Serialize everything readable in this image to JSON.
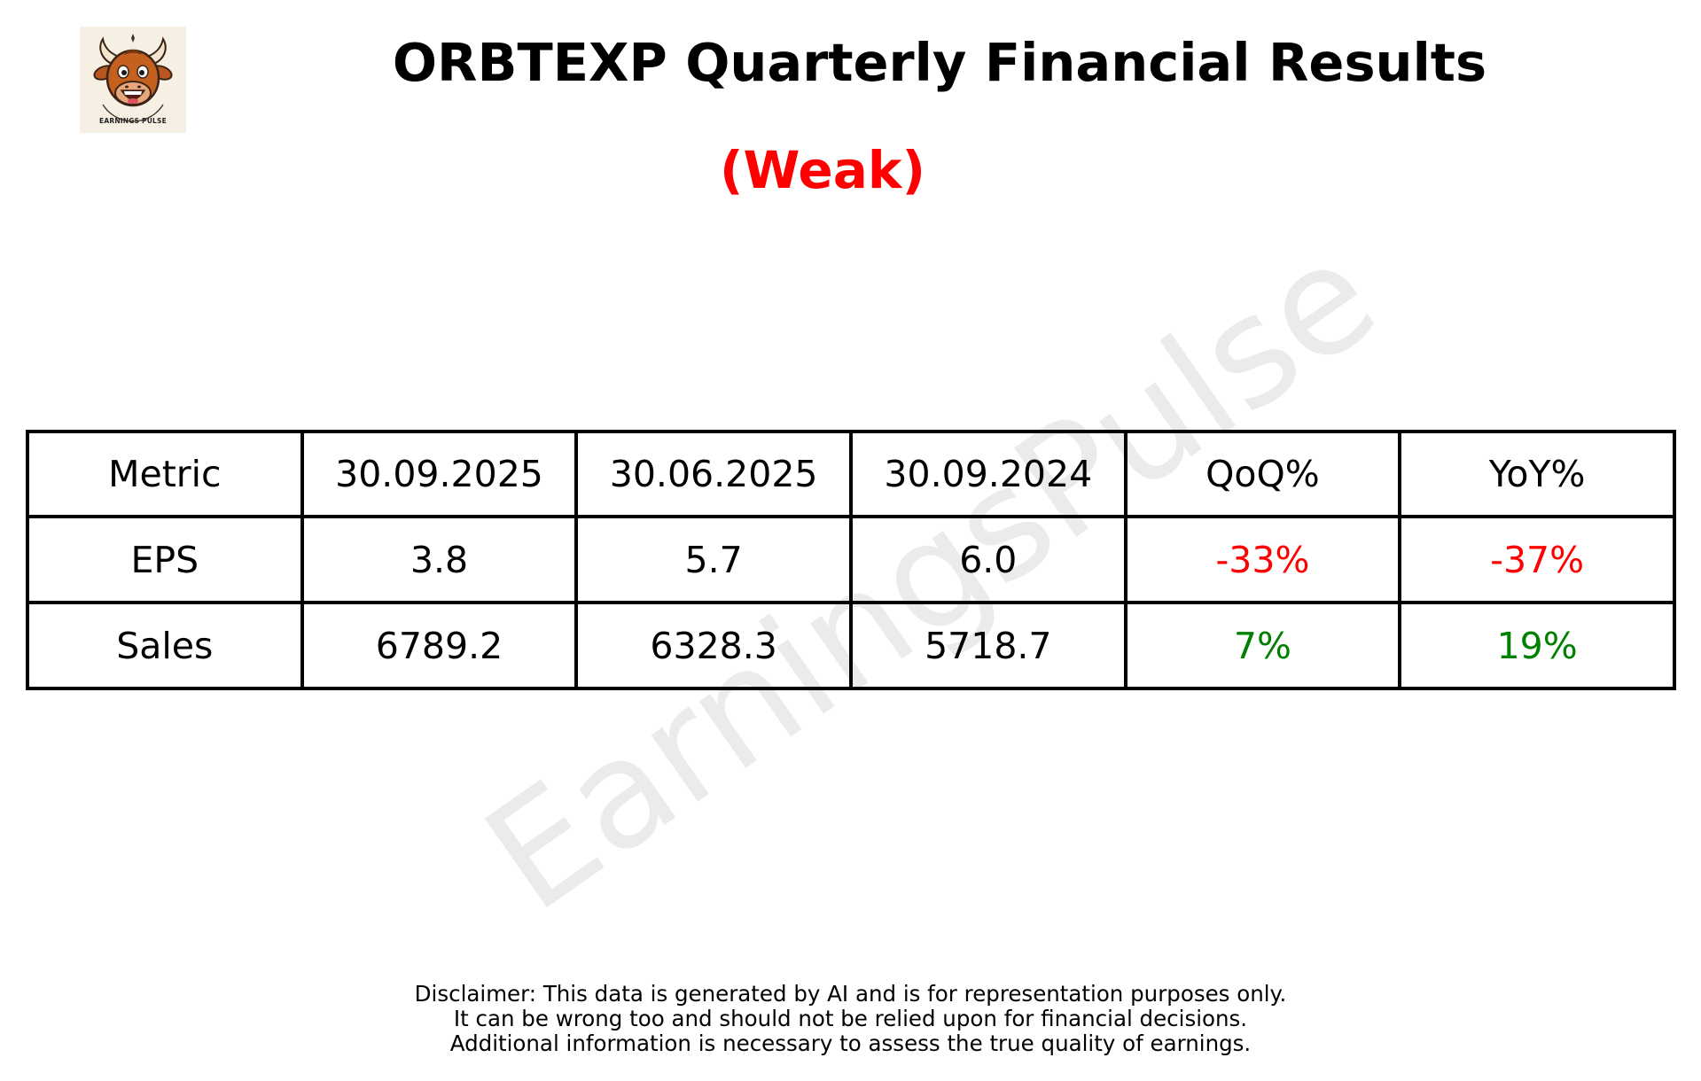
{
  "header": {
    "title": "ORBTEXP Quarterly Financial Results",
    "rating": "(Weak)",
    "rating_color": "#ff0000"
  },
  "logo": {
    "text": "EARNINGS PULSE",
    "icon": "bull-mascot-icon"
  },
  "watermark": "EarningsPulse",
  "chart_data": {
    "type": "table",
    "columns": [
      "Metric",
      "30.09.2025",
      "30.06.2025",
      "30.09.2024",
      "QoQ%",
      "YoY%"
    ],
    "rows": [
      {
        "cells": [
          "EPS",
          "3.8",
          "5.7",
          "6.0",
          "-33%",
          "-37%"
        ],
        "colors": [
          "#000000",
          "#000000",
          "#000000",
          "#000000",
          "#ff0000",
          "#ff0000"
        ]
      },
      {
        "cells": [
          "Sales",
          "6789.2",
          "6328.3",
          "5718.7",
          "7%",
          "19%"
        ],
        "colors": [
          "#000000",
          "#000000",
          "#000000",
          "#000000",
          "#008000",
          "#008000"
        ]
      }
    ]
  },
  "disclaimer": {
    "lines": [
      "Disclaimer: This data is generated by AI and is for representation purposes only.",
      "It can be wrong too and should not be relied upon for financial decisions.",
      "Additional information is necessary to assess the true quality of earnings."
    ]
  }
}
